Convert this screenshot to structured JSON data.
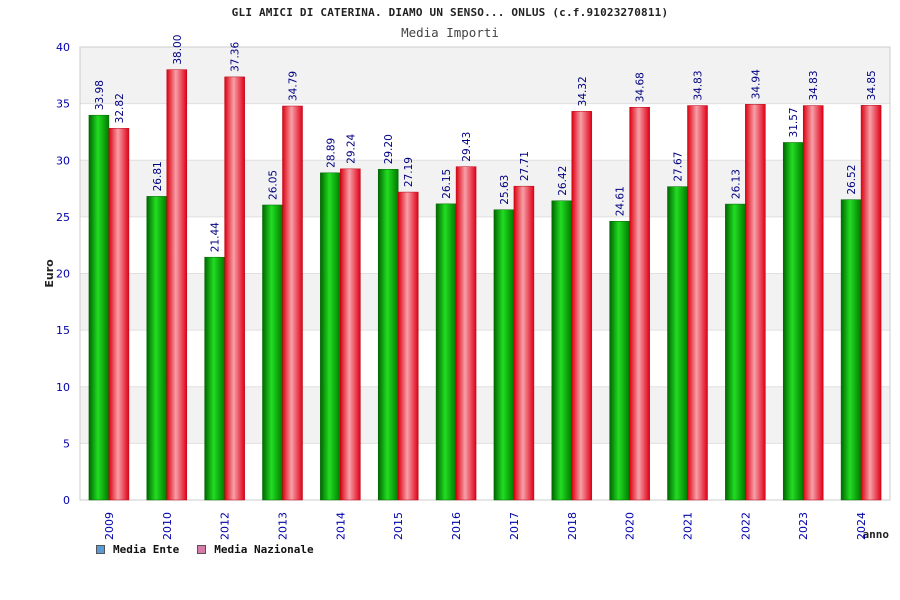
{
  "chart_data": {
    "type": "bar",
    "title": "GLI AMICI DI CATERINA. DIAMO UN SENSO... ONLUS (c.f.91023270811)",
    "subtitle": "Media Importi",
    "xlabel": "anno",
    "ylabel": "Euro",
    "ylim": [
      0,
      40
    ],
    "yticks": [
      "0",
      "5",
      "10",
      "15",
      "20",
      "25",
      "30",
      "35",
      "40"
    ],
    "grid": "horizontal bands",
    "legend_position": "bottom-left",
    "categories": [
      "2009",
      "2010",
      "2012",
      "2013",
      "2014",
      "2015",
      "2016",
      "2017",
      "2018",
      "2020",
      "2021",
      "2022",
      "2023",
      "2024"
    ],
    "series": [
      {
        "name": "Media Ente",
        "color": "#00c000",
        "legend_color": "#5b9bd5",
        "values": [
          33.98,
          26.81,
          21.44,
          26.05,
          28.89,
          29.2,
          26.15,
          25.63,
          26.42,
          24.61,
          27.67,
          26.13,
          31.57,
          26.52
        ],
        "labels": [
          "33.98",
          "26.81",
          "21.44",
          "26.05",
          "28.89",
          "29.20",
          "26.15",
          "25.63",
          "26.42",
          "24.61",
          "27.67",
          "26.13",
          "31.57",
          "26.52"
        ]
      },
      {
        "name": "Media Nazionale",
        "color": "#ee1122",
        "legend_color": "#d87aa8",
        "values": [
          32.82,
          38.0,
          37.36,
          34.79,
          29.24,
          27.19,
          29.43,
          27.71,
          34.32,
          34.68,
          34.83,
          34.94,
          34.83,
          34.85
        ],
        "labels": [
          "32.82",
          "38.00",
          "37.36",
          "34.79",
          "29.24",
          "27.19",
          "29.43",
          "27.71",
          "34.32",
          "34.68",
          "34.83",
          "34.94",
          "34.83",
          "34.85"
        ]
      }
    ]
  }
}
